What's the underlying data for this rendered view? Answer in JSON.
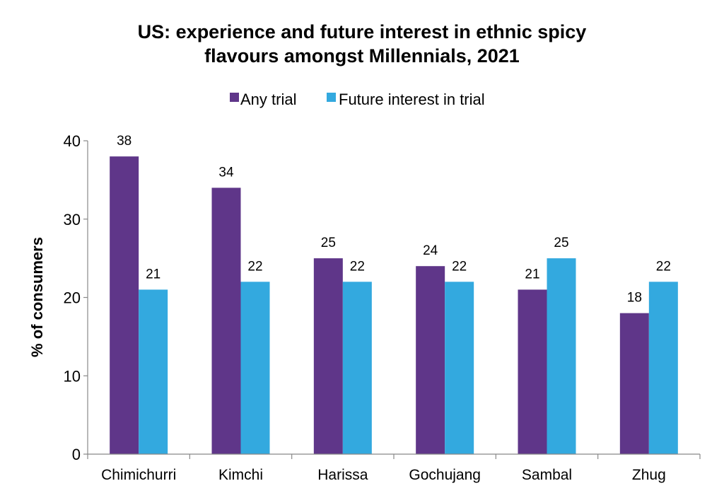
{
  "chart_data": {
    "type": "bar",
    "title_lines": [
      "US: experience and future interest in ethnic spicy",
      "flavours amongst Millennials, 2021"
    ],
    "ylabel": "% of consumers",
    "xlabel": "",
    "ylim": [
      0,
      40
    ],
    "yticks": [
      0,
      10,
      20,
      30,
      40
    ],
    "grid": false,
    "legend_position": "top-center",
    "categories": [
      "Chimichurri",
      "Kimchi",
      "Harissa",
      "Gochujang",
      "Sambal",
      "Zhug"
    ],
    "series": [
      {
        "name": "Any trial",
        "color": "#5f3689",
        "values": [
          38,
          34,
          25,
          24,
          21,
          18
        ]
      },
      {
        "name": "Future interest in trial",
        "color": "#33a9df",
        "values": [
          21,
          22,
          22,
          22,
          25,
          22
        ]
      }
    ]
  }
}
